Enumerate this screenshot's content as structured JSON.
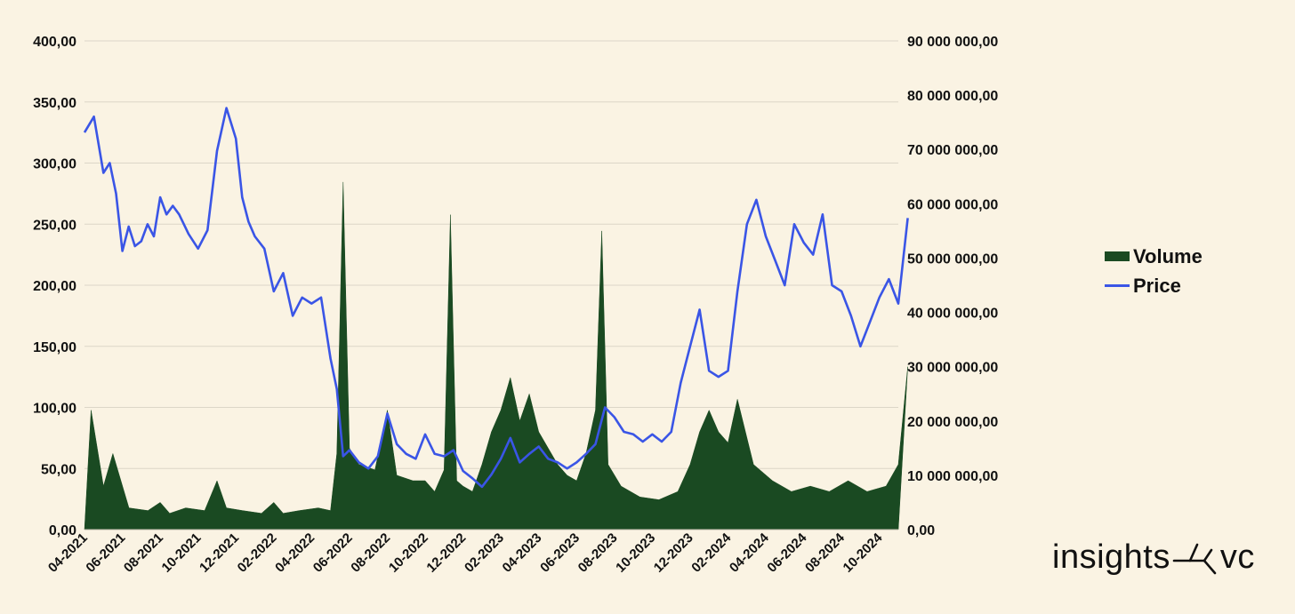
{
  "chart_data": {
    "type": "line",
    "title": "",
    "xlabel": "",
    "ylabel": "",
    "y_left_ticks": [
      "0,00",
      "50,00",
      "100,00",
      "150,00",
      "200,00",
      "250,00",
      "300,00",
      "350,00",
      "400,00"
    ],
    "y_right_ticks": [
      "0,00",
      "10 000 000,00",
      "20 000 000,00",
      "30 000 000,00",
      "40 000 000,00",
      "50 000 000,00",
      "60 000 000,00",
      "70 000 000,00",
      "80 000 000,00",
      "90 000 000,00"
    ],
    "ylim_left": [
      0,
      400
    ],
    "ylim_right": [
      0,
      90000000
    ],
    "x_ticks": [
      "04-2021",
      "06-2021",
      "08-2021",
      "10-2021",
      "12-2021",
      "02-2022",
      "04-2022",
      "06-2022",
      "08-2022",
      "10-2022",
      "12-2022",
      "02-2023",
      "04-2023",
      "06-2023",
      "08-2023",
      "10-2023",
      "12-2023",
      "02-2024",
      "04-2024",
      "06-2024",
      "08-2024",
      "10-2024"
    ],
    "x_start": "04-2021",
    "x_end": "11-2024",
    "grid": true,
    "legend_position": "right",
    "series": [
      {
        "name": "Price",
        "type": "line",
        "axis": "left",
        "color": "#3a55e6",
        "points": [
          [
            "04-2021",
            325
          ],
          [
            "04-2021",
            338
          ],
          [
            "05-2021",
            292
          ],
          [
            "05-2021",
            300
          ],
          [
            "05-2021",
            275
          ],
          [
            "06-2021",
            228
          ],
          [
            "06-2021",
            248
          ],
          [
            "06-2021",
            232
          ],
          [
            "07-2021",
            236
          ],
          [
            "07-2021",
            250
          ],
          [
            "07-2021",
            240
          ],
          [
            "08-2021",
            272
          ],
          [
            "08-2021",
            258
          ],
          [
            "08-2021",
            265
          ],
          [
            "09-2021",
            258
          ],
          [
            "09-2021",
            242
          ],
          [
            "10-2021",
            230
          ],
          [
            "10-2021",
            245
          ],
          [
            "11-2021",
            310
          ],
          [
            "11-2021",
            345
          ],
          [
            "12-2021",
            320
          ],
          [
            "12-2021",
            272
          ],
          [
            "12-2021",
            252
          ],
          [
            "01-2022",
            240
          ],
          [
            "01-2022",
            230
          ],
          [
            "02-2022",
            195
          ],
          [
            "02-2022",
            210
          ],
          [
            "03-2022",
            175
          ],
          [
            "03-2022",
            190
          ],
          [
            "04-2022",
            185
          ],
          [
            "04-2022",
            190
          ],
          [
            "05-2022",
            140
          ],
          [
            "05-2022",
            115
          ],
          [
            "05-2022",
            60
          ],
          [
            "06-2022",
            65
          ],
          [
            "06-2022",
            55
          ],
          [
            "07-2022",
            50
          ],
          [
            "07-2022",
            60
          ],
          [
            "08-2022",
            95
          ],
          [
            "08-2022",
            70
          ],
          [
            "09-2022",
            62
          ],
          [
            "09-2022",
            58
          ],
          [
            "10-2022",
            78
          ],
          [
            "10-2022",
            62
          ],
          [
            "11-2022",
            60
          ],
          [
            "11-2022",
            65
          ],
          [
            "12-2022",
            48
          ],
          [
            "12-2022",
            42
          ],
          [
            "01-2023",
            35
          ],
          [
            "01-2023",
            45
          ],
          [
            "02-2023",
            58
          ],
          [
            "02-2023",
            75
          ],
          [
            "03-2023",
            55
          ],
          [
            "03-2023",
            62
          ],
          [
            "04-2023",
            68
          ],
          [
            "04-2023",
            58
          ],
          [
            "05-2023",
            55
          ],
          [
            "05-2023",
            50
          ],
          [
            "06-2023",
            55
          ],
          [
            "06-2023",
            62
          ],
          [
            "07-2023",
            70
          ],
          [
            "07-2023",
            100
          ],
          [
            "08-2023",
            92
          ],
          [
            "08-2023",
            80
          ],
          [
            "09-2023",
            78
          ],
          [
            "09-2023",
            72
          ],
          [
            "10-2023",
            78
          ],
          [
            "10-2023",
            72
          ],
          [
            "11-2023",
            80
          ],
          [
            "11-2023",
            120
          ],
          [
            "12-2023",
            150
          ],
          [
            "12-2023",
            180
          ],
          [
            "01-2024",
            130
          ],
          [
            "01-2024",
            125
          ],
          [
            "02-2024",
            130
          ],
          [
            "02-2024",
            195
          ],
          [
            "03-2024",
            250
          ],
          [
            "03-2024",
            270
          ],
          [
            "04-2024",
            240
          ],
          [
            "04-2024",
            220
          ],
          [
            "05-2024",
            200
          ],
          [
            "05-2024",
            250
          ],
          [
            "06-2024",
            235
          ],
          [
            "06-2024",
            225
          ],
          [
            "07-2024",
            258
          ],
          [
            "07-2024",
            200
          ],
          [
            "08-2024",
            195
          ],
          [
            "08-2024",
            175
          ],
          [
            "09-2024",
            150
          ],
          [
            "09-2024",
            170
          ],
          [
            "10-2024",
            190
          ],
          [
            "10-2024",
            205
          ],
          [
            "11-2024",
            185
          ],
          [
            "11-2024",
            255
          ]
        ]
      },
      {
        "name": "Volume",
        "type": "area",
        "axis": "right",
        "color": "#1a4a22",
        "points": [
          [
            "04-2021",
            22000000
          ],
          [
            "05-2021",
            8000000
          ],
          [
            "05-2021",
            14000000
          ],
          [
            "06-2021",
            4000000
          ],
          [
            "07-2021",
            3500000
          ],
          [
            "08-2021",
            5000000
          ],
          [
            "08-2021",
            3000000
          ],
          [
            "09-2021",
            4000000
          ],
          [
            "10-2021",
            3500000
          ],
          [
            "11-2021",
            9000000
          ],
          [
            "11-2021",
            4000000
          ],
          [
            "12-2021",
            3500000
          ],
          [
            "01-2022",
            3000000
          ],
          [
            "02-2022",
            5000000
          ],
          [
            "02-2022",
            3000000
          ],
          [
            "03-2022",
            3500000
          ],
          [
            "04-2022",
            4000000
          ],
          [
            "05-2022",
            3500000
          ],
          [
            "05-2022",
            14000000
          ],
          [
            "05-2022",
            64000000
          ],
          [
            "06-2022",
            15000000
          ],
          [
            "06-2022",
            12000000
          ],
          [
            "07-2022",
            11000000
          ],
          [
            "08-2022",
            22000000
          ],
          [
            "08-2022",
            10000000
          ],
          [
            "09-2022",
            9000000
          ],
          [
            "10-2022",
            9000000
          ],
          [
            "10-2022",
            7000000
          ],
          [
            "11-2022",
            11000000
          ],
          [
            "11-2022",
            58000000
          ],
          [
            "11-2022",
            9000000
          ],
          [
            "12-2022",
            8000000
          ],
          [
            "12-2022",
            7000000
          ],
          [
            "01-2023",
            12000000
          ],
          [
            "01-2023",
            18000000
          ],
          [
            "02-2023",
            22000000
          ],
          [
            "02-2023",
            28000000
          ],
          [
            "03-2023",
            20000000
          ],
          [
            "03-2023",
            25000000
          ],
          [
            "04-2023",
            18000000
          ],
          [
            "04-2023",
            15000000
          ],
          [
            "05-2023",
            12000000
          ],
          [
            "05-2023",
            10000000
          ],
          [
            "06-2023",
            9000000
          ],
          [
            "06-2023",
            14000000
          ],
          [
            "07-2023",
            22000000
          ],
          [
            "07-2023",
            55000000
          ],
          [
            "07-2023",
            12000000
          ],
          [
            "08-2023",
            8000000
          ],
          [
            "09-2023",
            6000000
          ],
          [
            "10-2023",
            5500000
          ],
          [
            "11-2023",
            7000000
          ],
          [
            "12-2023",
            12000000
          ],
          [
            "12-2023",
            18000000
          ],
          [
            "01-2024",
            22000000
          ],
          [
            "01-2024",
            18000000
          ],
          [
            "02-2024",
            16000000
          ],
          [
            "02-2024",
            24000000
          ],
          [
            "03-2024",
            12000000
          ],
          [
            "04-2024",
            9000000
          ],
          [
            "05-2024",
            7000000
          ],
          [
            "06-2024",
            8000000
          ],
          [
            "07-2024",
            7000000
          ],
          [
            "08-2024",
            9000000
          ],
          [
            "09-2024",
            7000000
          ],
          [
            "10-2024",
            8000000
          ],
          [
            "11-2024",
            12000000
          ],
          [
            "11-2024",
            30000000
          ]
        ]
      }
    ]
  },
  "legend": {
    "volume_label": "Volume",
    "price_label": "Price"
  },
  "logo": {
    "left_text": "insights",
    "right_text": "vc",
    "icon": "split-arrow-icon"
  }
}
